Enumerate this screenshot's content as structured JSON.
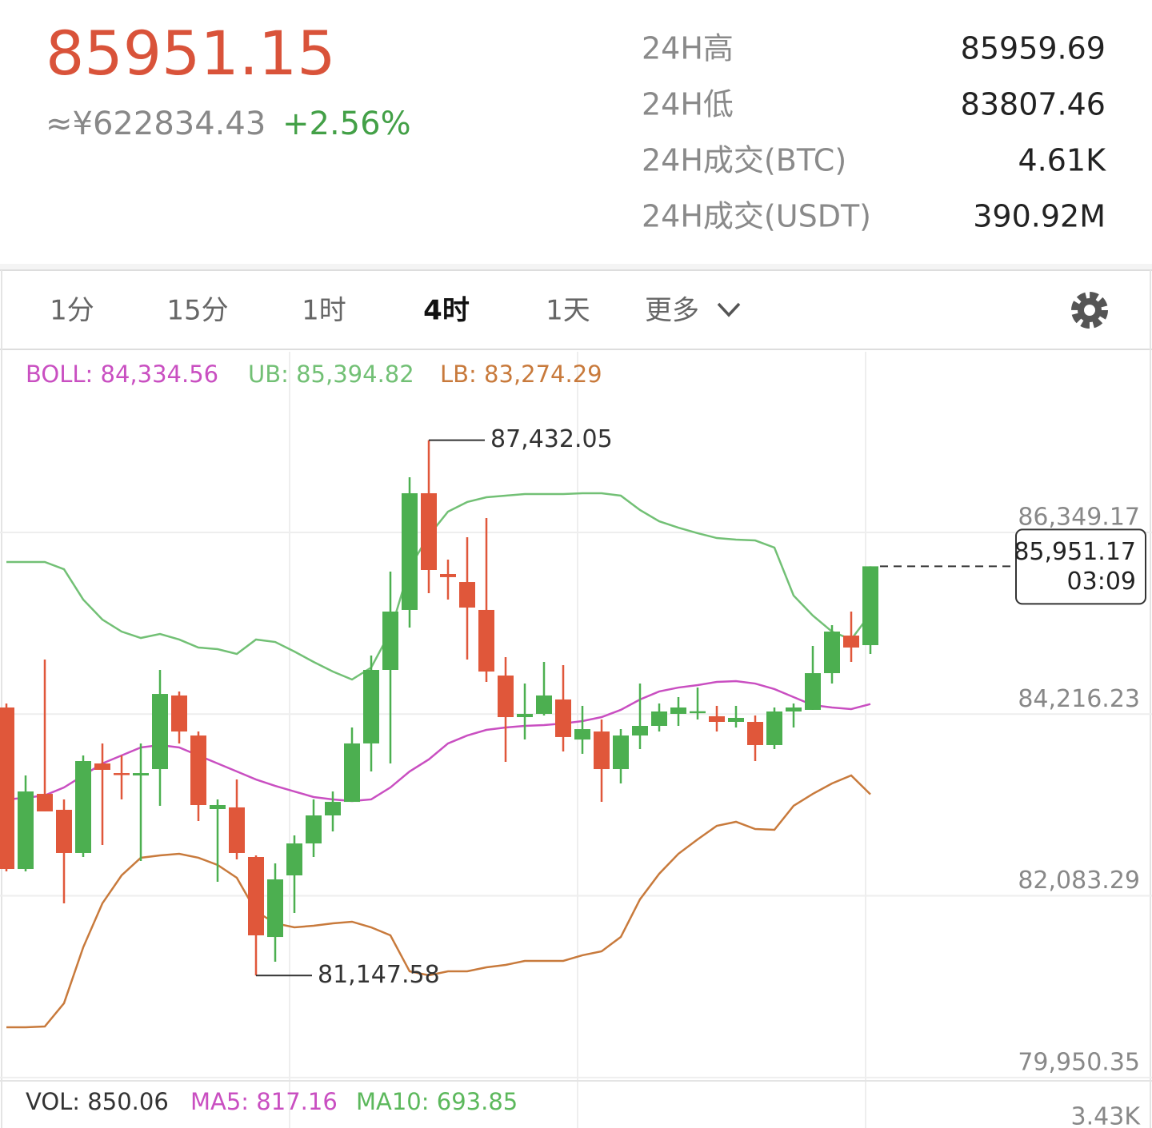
{
  "header": {
    "price": "85951.15",
    "cny": "≈¥622834.43",
    "change": "+2.56%"
  },
  "stats": [
    {
      "label": "24H高",
      "value": "85959.69"
    },
    {
      "label": "24H低",
      "value": "83807.46"
    },
    {
      "label": "24H成交(BTC)",
      "value": "4.61K"
    },
    {
      "label": "24H成交(USDT)",
      "value": "390.92M"
    }
  ],
  "tabs": [
    "1分",
    "15分",
    "1时",
    "4时",
    "1天",
    "更多"
  ],
  "active_tab": 3,
  "chart_data": {
    "type": "candlestick",
    "up_color": "#4caf50",
    "down_color": "#e0573a",
    "open": [
      84294,
      82398,
      83280,
      83093,
      82586,
      83637,
      83524,
      83496,
      83571,
      84435,
      83965,
      83102,
      83121,
      82539,
      81600,
      82323,
      82698,
      83027,
      83186,
      83872,
      84735,
      85439,
      86809,
      85861,
      85767,
      85439,
      84669,
      84181,
      84219,
      84388,
      83918,
      84012,
      83571,
      83965,
      84078,
      84219,
      84247,
      84191,
      84125,
      84125,
      83853,
      84247,
      84266,
      84697,
      85138,
      85026
    ],
    "high": [
      84341,
      83496,
      84857,
      83215,
      83731,
      83872,
      83731,
      83872,
      84735,
      84482,
      84012,
      83215,
      83449,
      82558,
      82464,
      82792,
      83215,
      83308,
      84059,
      84904,
      85889,
      86997,
      87432.05,
      86030,
      86293,
      86518,
      84885,
      84575,
      84829,
      84791,
      84313,
      84153,
      84040,
      84575,
      84341,
      84416,
      84528,
      84313,
      84313,
      84200,
      84294,
      84341,
      85016,
      85260,
      85420,
      85951.17
    ],
    "low": [
      82370,
      82370,
      83074,
      81995,
      82539,
      82680,
      83215,
      82492,
      83140,
      83872,
      82961,
      82248,
      82511,
      81147.58,
      81310,
      81882,
      82539,
      82839,
      83186,
      83543,
      83637,
      85232,
      85636,
      85561,
      84857,
      84594,
      83656,
      83918,
      84200,
      83778,
      83750,
      83186,
      83402,
      83806,
      84012,
      84078,
      84153,
      84012,
      84059,
      83665,
      83806,
      84059,
      84266,
      84575,
      84829,
      84923
    ],
    "close": [
      82398,
      83308,
      83074,
      82586,
      83665,
      83562,
      83506,
      83524,
      84453,
      84012,
      83149,
      83149,
      82586,
      81619,
      82276,
      82698,
      83027,
      83186,
      83872,
      84735,
      85420,
      86809,
      85908,
      85824,
      85467,
      84716,
      84181,
      84219,
      84435,
      83947,
      84040,
      83571,
      83965,
      84078,
      84247,
      84294,
      84250,
      84125,
      84172,
      83853,
      84247,
      84294,
      84697,
      85185,
      84998,
      85951.17
    ],
    "series": [
      {
        "name": "BOLL: 84,334.56",
        "color": "#c94fc1",
        "values": [
          83215,
          83233,
          83262,
          83355,
          83496,
          83637,
          83731,
          83825,
          83853,
          83825,
          83731,
          83637,
          83543,
          83449,
          83374,
          83308,
          83243,
          83215,
          83196,
          83215,
          83355,
          83543,
          83684,
          83872,
          83965,
          84031,
          84059,
          84078,
          84087,
          84106,
          84134,
          84181,
          84266,
          84388,
          84482,
          84528,
          84557,
          84594,
          84603,
          84575,
          84510,
          84416,
          84322,
          84294,
          84275,
          84334.56
        ]
      },
      {
        "name": "UB: 85,394.82",
        "color": "#72c075",
        "values": [
          86002,
          86002,
          86002,
          85917,
          85561,
          85326,
          85185,
          85110,
          85157,
          85092,
          84998,
          84979,
          84923,
          85092,
          85063,
          84951,
          84829,
          84716,
          84622,
          84763,
          85185,
          85936,
          86312,
          86593,
          86706,
          86762,
          86781,
          86800,
          86800,
          86800,
          86809,
          86809,
          86781,
          86612,
          86480,
          86405,
          86340,
          86283,
          86265,
          86255,
          86171,
          85608,
          85373,
          85185,
          85092,
          85394.82
        ]
      },
      {
        "name": "LB: 83,274.29",
        "color": "#c87a3c",
        "values": [
          80540,
          80540,
          80549,
          80822,
          81478,
          81995,
          82323,
          82530,
          82558,
          82576,
          82530,
          82445,
          82295,
          81901,
          81760,
          81713,
          81732,
          81760,
          81779,
          81713,
          81619,
          81197,
          81150,
          81197,
          81197,
          81244,
          81272,
          81319,
          81319,
          81319,
          81385,
          81432,
          81600,
          82042,
          82342,
          82576,
          82745,
          82905,
          82952,
          82867,
          82858,
          83140,
          83280,
          83402,
          83496,
          83274.29
        ]
      }
    ],
    "high_label": "87,432.05",
    "low_label": "81,147.58",
    "last_price_label": "85,951.17",
    "last_price_time": "03:09",
    "ylim": [
      79930,
      88470
    ],
    "yticks": [
      {
        "value": 86349.17,
        "label": "86,349.17"
      },
      {
        "value": 84216.23,
        "label": "84,216.23"
      },
      {
        "value": 82083.29,
        "label": "82,083.29"
      },
      {
        "value": 79950.35,
        "label": "79,950.35"
      }
    ],
    "grid": true
  },
  "volume": {
    "labels": [
      {
        "text": "VOL: 850.06",
        "color": "#333333"
      },
      {
        "text": "MA5: 817.16",
        "color": "#c94fc1"
      },
      {
        "text": "MA10: 693.85",
        "color": "#5cb85c"
      }
    ],
    "ytick_label": "3.43K"
  }
}
